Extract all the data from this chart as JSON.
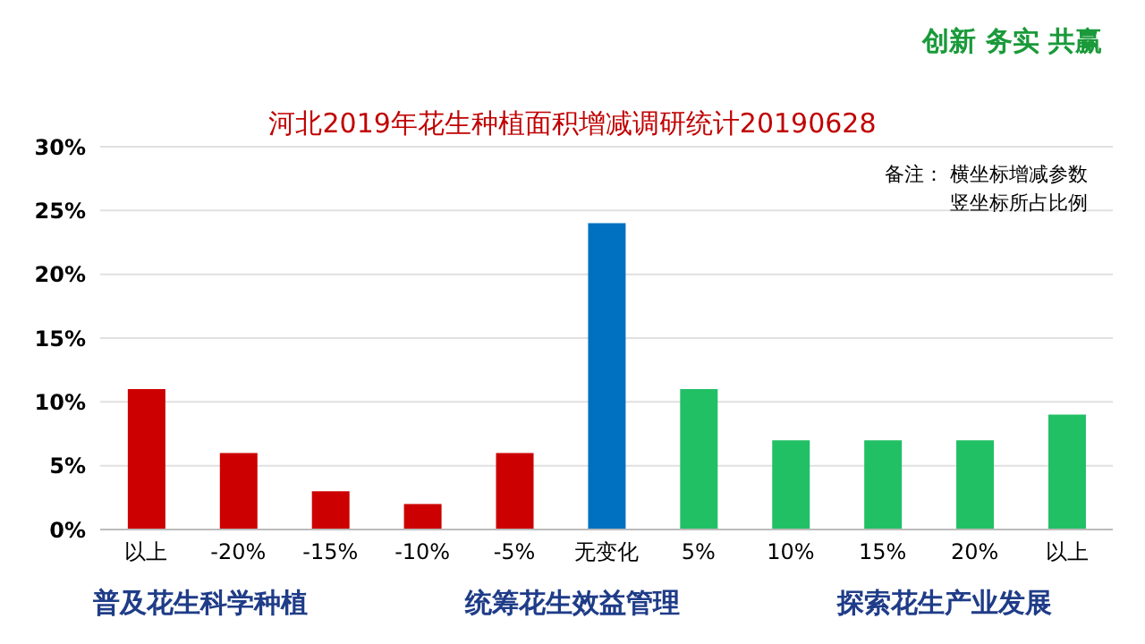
{
  "chart_data": {
    "type": "bar",
    "title": "河北2019年花生种植面积增减调研统计20190628",
    "categories": [
      "以上",
      "-20%",
      "-15%",
      "-10%",
      "-5%",
      "无变化",
      "5%",
      "10%",
      "15%",
      "20%",
      "以上"
    ],
    "values": [
      11,
      6,
      3,
      2,
      6,
      24,
      11,
      7,
      7,
      7,
      9
    ],
    "colors": [
      "#cc0000",
      "#cc0000",
      "#cc0000",
      "#cc0000",
      "#cc0000",
      "#0070c0",
      "#22c065",
      "#22c065",
      "#22c065",
      "#22c065",
      "#22c065"
    ],
    "ylim": [
      0,
      30
    ],
    "yticks": [
      {
        "value": 0,
        "label": "0%"
      },
      {
        "value": 5,
        "label": "5%"
      },
      {
        "value": 10,
        "label": "10%"
      },
      {
        "value": 15,
        "label": "15%"
      },
      {
        "value": 20,
        "label": "20%"
      },
      {
        "value": 25,
        "label": "25%"
      },
      {
        "value": 30,
        "label": "30%"
      }
    ],
    "grid": "y",
    "annotations": [
      "创新  务实  共赢",
      "备注： 横坐标增减参数",
      "竖坐标所占比例",
      "普及花生科学种植",
      "统筹花生效益管理",
      "探索花生产业发展"
    ]
  }
}
